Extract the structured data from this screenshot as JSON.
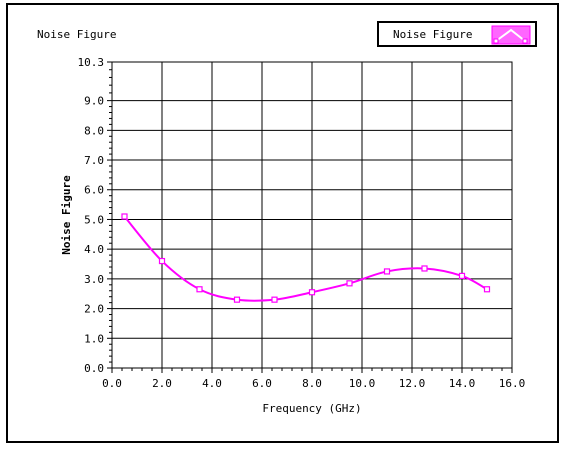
{
  "chart_data": {
    "type": "line",
    "title": "Noise Figure",
    "xlabel": "Frequency (GHz)",
    "ylabel": "Noise Figure",
    "xlim": [
      0,
      16
    ],
    "ylim": [
      0,
      10.3
    ],
    "x_ticks": [
      "0.0",
      "2.0",
      "4.0",
      "6.0",
      "8.0",
      "10.0",
      "12.0",
      "14.0",
      "16.0"
    ],
    "y_ticks": [
      "0.0",
      "1.0",
      "2.0",
      "3.0",
      "4.0",
      "5.0",
      "6.0",
      "7.0",
      "8.0",
      "9.0",
      "10.3"
    ],
    "grid": true,
    "legend_position": "top-right",
    "series": [
      {
        "name": "Noise Figure",
        "color": "#ff00ff",
        "x": [
          0.5,
          2.0,
          3.5,
          5.0,
          6.5,
          8.0,
          9.5,
          11.0,
          12.5,
          14.0,
          15.0
        ],
        "y": [
          5.1,
          3.6,
          2.65,
          2.3,
          2.3,
          2.55,
          2.85,
          3.25,
          3.35,
          3.1,
          2.65
        ]
      }
    ]
  }
}
